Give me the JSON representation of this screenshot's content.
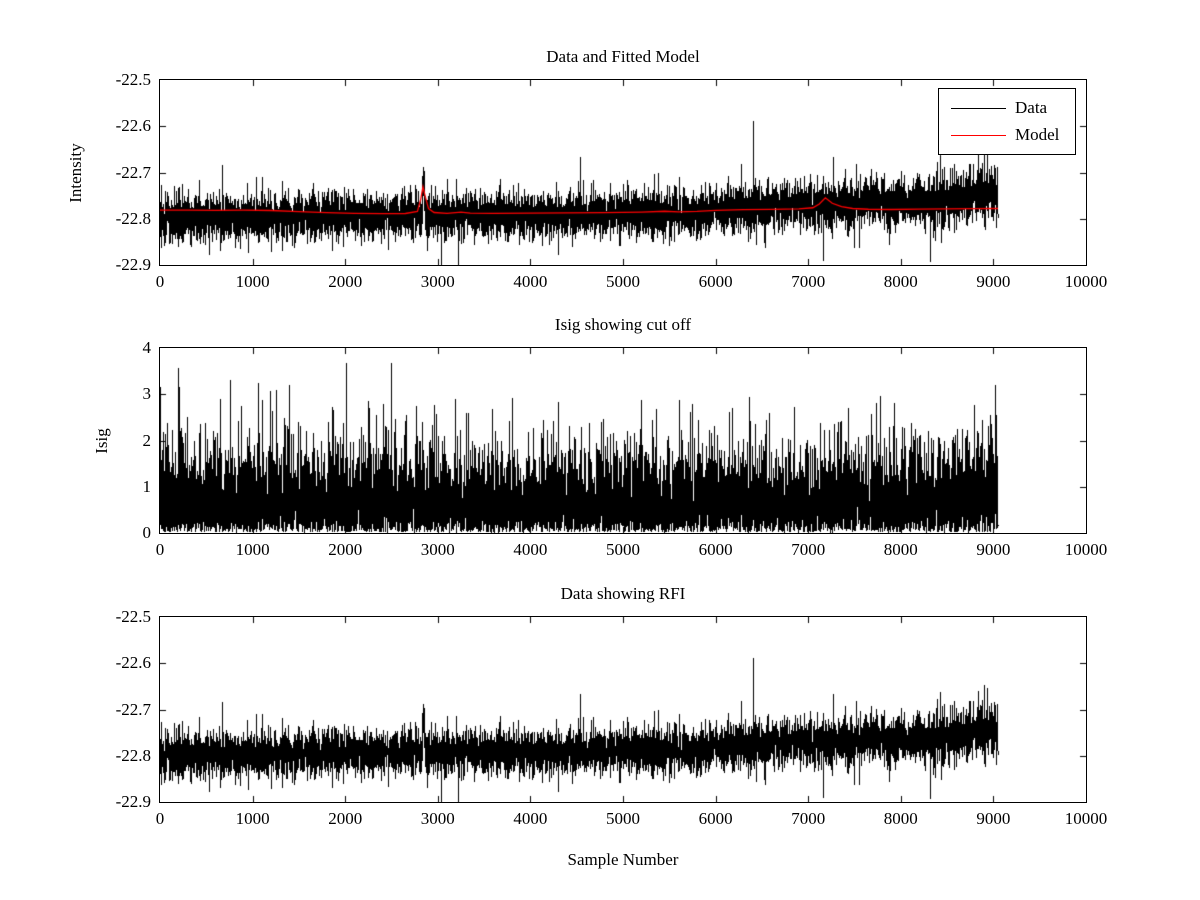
{
  "figure": {
    "background": "#ffffff",
    "axis_color": "#000000",
    "tick_length": 6,
    "font_size": 17
  },
  "chart_data": [
    {
      "type": "line",
      "title": "Data and Fitted Model",
      "ylabel": "Intensity",
      "xlabel": "",
      "xlim": [
        0,
        10000
      ],
      "ylim": [
        -22.9,
        -22.5
      ],
      "xticks": [
        0,
        1000,
        2000,
        3000,
        4000,
        5000,
        6000,
        7000,
        8000,
        9000,
        10000
      ],
      "xtick_labels": [
        "0",
        "1000",
        "2000",
        "3000",
        "4000",
        "5000",
        "6000",
        "7000",
        "8000",
        "9000",
        "10000"
      ],
      "yticks": [
        -22.9,
        -22.8,
        -22.7,
        -22.6,
        -22.5
      ],
      "ytick_labels": [
        "-22.9",
        "-22.8",
        "-22.7",
        "-22.6",
        "-22.5"
      ],
      "grid": false,
      "legend": {
        "position": "top-right",
        "entries": [
          {
            "label": "Data",
            "color": "#000000"
          },
          {
            "label": "Model",
            "color": "#ff0000"
          }
        ]
      },
      "series": [
        {
          "name": "Data",
          "color": "#000000",
          "kind": "gaussian-noise",
          "n": 9051,
          "x_start": 0,
          "x_end": 9050,
          "seed": 20,
          "noise_sigma": 0.0235,
          "heavy_tail_prob": 0.035,
          "heavy_tail_scale": 1.8,
          "sigma_keypoints": [
            [
              0,
              1.0
            ],
            [
              8300,
              1.0
            ],
            [
              8700,
              1.15
            ],
            [
              9050,
              1.15
            ]
          ],
          "trend_keypoints": [
            [
              0,
              -22.799
            ],
            [
              1500,
              -22.796
            ],
            [
              3000,
              -22.7925
            ],
            [
              4500,
              -22.79
            ],
            [
              5900,
              -22.7865
            ],
            [
              6150,
              -22.775
            ],
            [
              6700,
              -22.7725
            ],
            [
              7300,
              -22.77
            ],
            [
              8000,
              -22.766
            ],
            [
              8500,
              -22.758
            ],
            [
              8850,
              -22.747
            ],
            [
              9050,
              -22.744
            ]
          ],
          "spikes": [
            {
              "x": 2848,
              "amp": 0.075,
              "width": 10
            }
          ]
        },
        {
          "name": "Model",
          "color": "#ff0000",
          "kind": "smooth",
          "keypoints": [
            [
              0,
              -22.7815
            ],
            [
              300,
              -22.7812
            ],
            [
              600,
              -22.7818
            ],
            [
              900,
              -22.7815
            ],
            [
              1200,
              -22.7822
            ],
            [
              1500,
              -22.7846
            ],
            [
              1800,
              -22.7868
            ],
            [
              2100,
              -22.7882
            ],
            [
              2400,
              -22.789
            ],
            [
              2650,
              -22.7886
            ],
            [
              2780,
              -22.784
            ],
            [
              2815,
              -22.758
            ],
            [
              2840,
              -22.7305
            ],
            [
              2865,
              -22.752
            ],
            [
              2900,
              -22.778
            ],
            [
              2960,
              -22.7865
            ],
            [
              3100,
              -22.7885
            ],
            [
              3250,
              -22.7855
            ],
            [
              3350,
              -22.788
            ],
            [
              3600,
              -22.7885
            ],
            [
              4000,
              -22.788
            ],
            [
              4400,
              -22.7875
            ],
            [
              4800,
              -22.7868
            ],
            [
              5200,
              -22.7855
            ],
            [
              5450,
              -22.7838
            ],
            [
              5600,
              -22.7852
            ],
            [
              5800,
              -22.7842
            ],
            [
              6000,
              -22.7818
            ],
            [
              6300,
              -22.7802
            ],
            [
              6600,
              -22.7798
            ],
            [
              6900,
              -22.7785
            ],
            [
              7050,
              -22.7762
            ],
            [
              7120,
              -22.768
            ],
            [
              7185,
              -22.7548
            ],
            [
              7260,
              -22.7665
            ],
            [
              7360,
              -22.774
            ],
            [
              7480,
              -22.7778
            ],
            [
              7650,
              -22.7795
            ],
            [
              7900,
              -22.78
            ],
            [
              8200,
              -22.7792
            ],
            [
              8500,
              -22.7788
            ],
            [
              8800,
              -22.778
            ],
            [
              9050,
              -22.7778
            ]
          ]
        }
      ]
    },
    {
      "type": "line",
      "title": "Isig showing cut off",
      "ylabel": "Isig",
      "xlabel": "",
      "xlim": [
        0,
        10000
      ],
      "ylim": [
        0,
        4
      ],
      "xticks": [
        0,
        1000,
        2000,
        3000,
        4000,
        5000,
        6000,
        7000,
        8000,
        9000,
        10000
      ],
      "xtick_labels": [
        "0",
        "1000",
        "2000",
        "3000",
        "4000",
        "5000",
        "6000",
        "7000",
        "8000",
        "9000",
        "10000"
      ],
      "yticks": [
        0,
        1,
        2,
        3,
        4
      ],
      "ytick_labels": [
        "0",
        "1",
        "2",
        "3",
        "4"
      ],
      "grid": false,
      "series": [
        {
          "name": "Isig",
          "color": "#000000",
          "kind": "halfnormal-noise",
          "n": 9051,
          "x_start": 0,
          "x_end": 9050,
          "seed": 7,
          "sigma": 0.82,
          "offset": 0.02,
          "clip_min": 0.02,
          "clip_max": 3.66,
          "heavy_tail_prob": 0.012,
          "heavy_tail_scale": 2.0,
          "amp_keypoints": [
            [
              0,
              1.0
            ],
            [
              1150,
              1.0
            ],
            [
              1300,
              1.18
            ],
            [
              1450,
              1.0
            ],
            [
              8300,
              1.0
            ],
            [
              8700,
              1.22
            ],
            [
              9050,
              1.18
            ]
          ]
        }
      ]
    },
    {
      "type": "line",
      "title": "Data showing RFI",
      "ylabel": "",
      "xlabel": "Sample Number",
      "xlim": [
        0,
        10000
      ],
      "ylim": [
        -22.9,
        -22.5
      ],
      "xticks": [
        0,
        1000,
        2000,
        3000,
        4000,
        5000,
        6000,
        7000,
        8000,
        9000,
        10000
      ],
      "xtick_labels": [
        "0",
        "1000",
        "2000",
        "3000",
        "4000",
        "5000",
        "6000",
        "7000",
        "8000",
        "9000",
        "10000"
      ],
      "yticks": [
        -22.9,
        -22.8,
        -22.7,
        -22.6,
        -22.5
      ],
      "ytick_labels": [
        "-22.9",
        "-22.8",
        "-22.7",
        "-22.6",
        "-22.5"
      ],
      "grid": false,
      "series": [
        {
          "name": "Data",
          "color": "#000000",
          "kind": "gaussian-noise",
          "n": 9051,
          "x_start": 0,
          "x_end": 9050,
          "seed": 20,
          "noise_sigma": 0.0235,
          "heavy_tail_prob": 0.035,
          "heavy_tail_scale": 1.8,
          "sigma_keypoints": [
            [
              0,
              1.0
            ],
            [
              8300,
              1.0
            ],
            [
              8700,
              1.15
            ],
            [
              9050,
              1.15
            ]
          ],
          "trend_keypoints": [
            [
              0,
              -22.799
            ],
            [
              1500,
              -22.796
            ],
            [
              3000,
              -22.7925
            ],
            [
              4500,
              -22.79
            ],
            [
              5900,
              -22.7865
            ],
            [
              6150,
              -22.775
            ],
            [
              6700,
              -22.7725
            ],
            [
              7300,
              -22.77
            ],
            [
              8000,
              -22.766
            ],
            [
              8500,
              -22.758
            ],
            [
              8850,
              -22.747
            ],
            [
              9050,
              -22.744
            ]
          ],
          "spikes": [
            {
              "x": 2848,
              "amp": 0.075,
              "width": 10
            }
          ]
        }
      ]
    }
  ]
}
